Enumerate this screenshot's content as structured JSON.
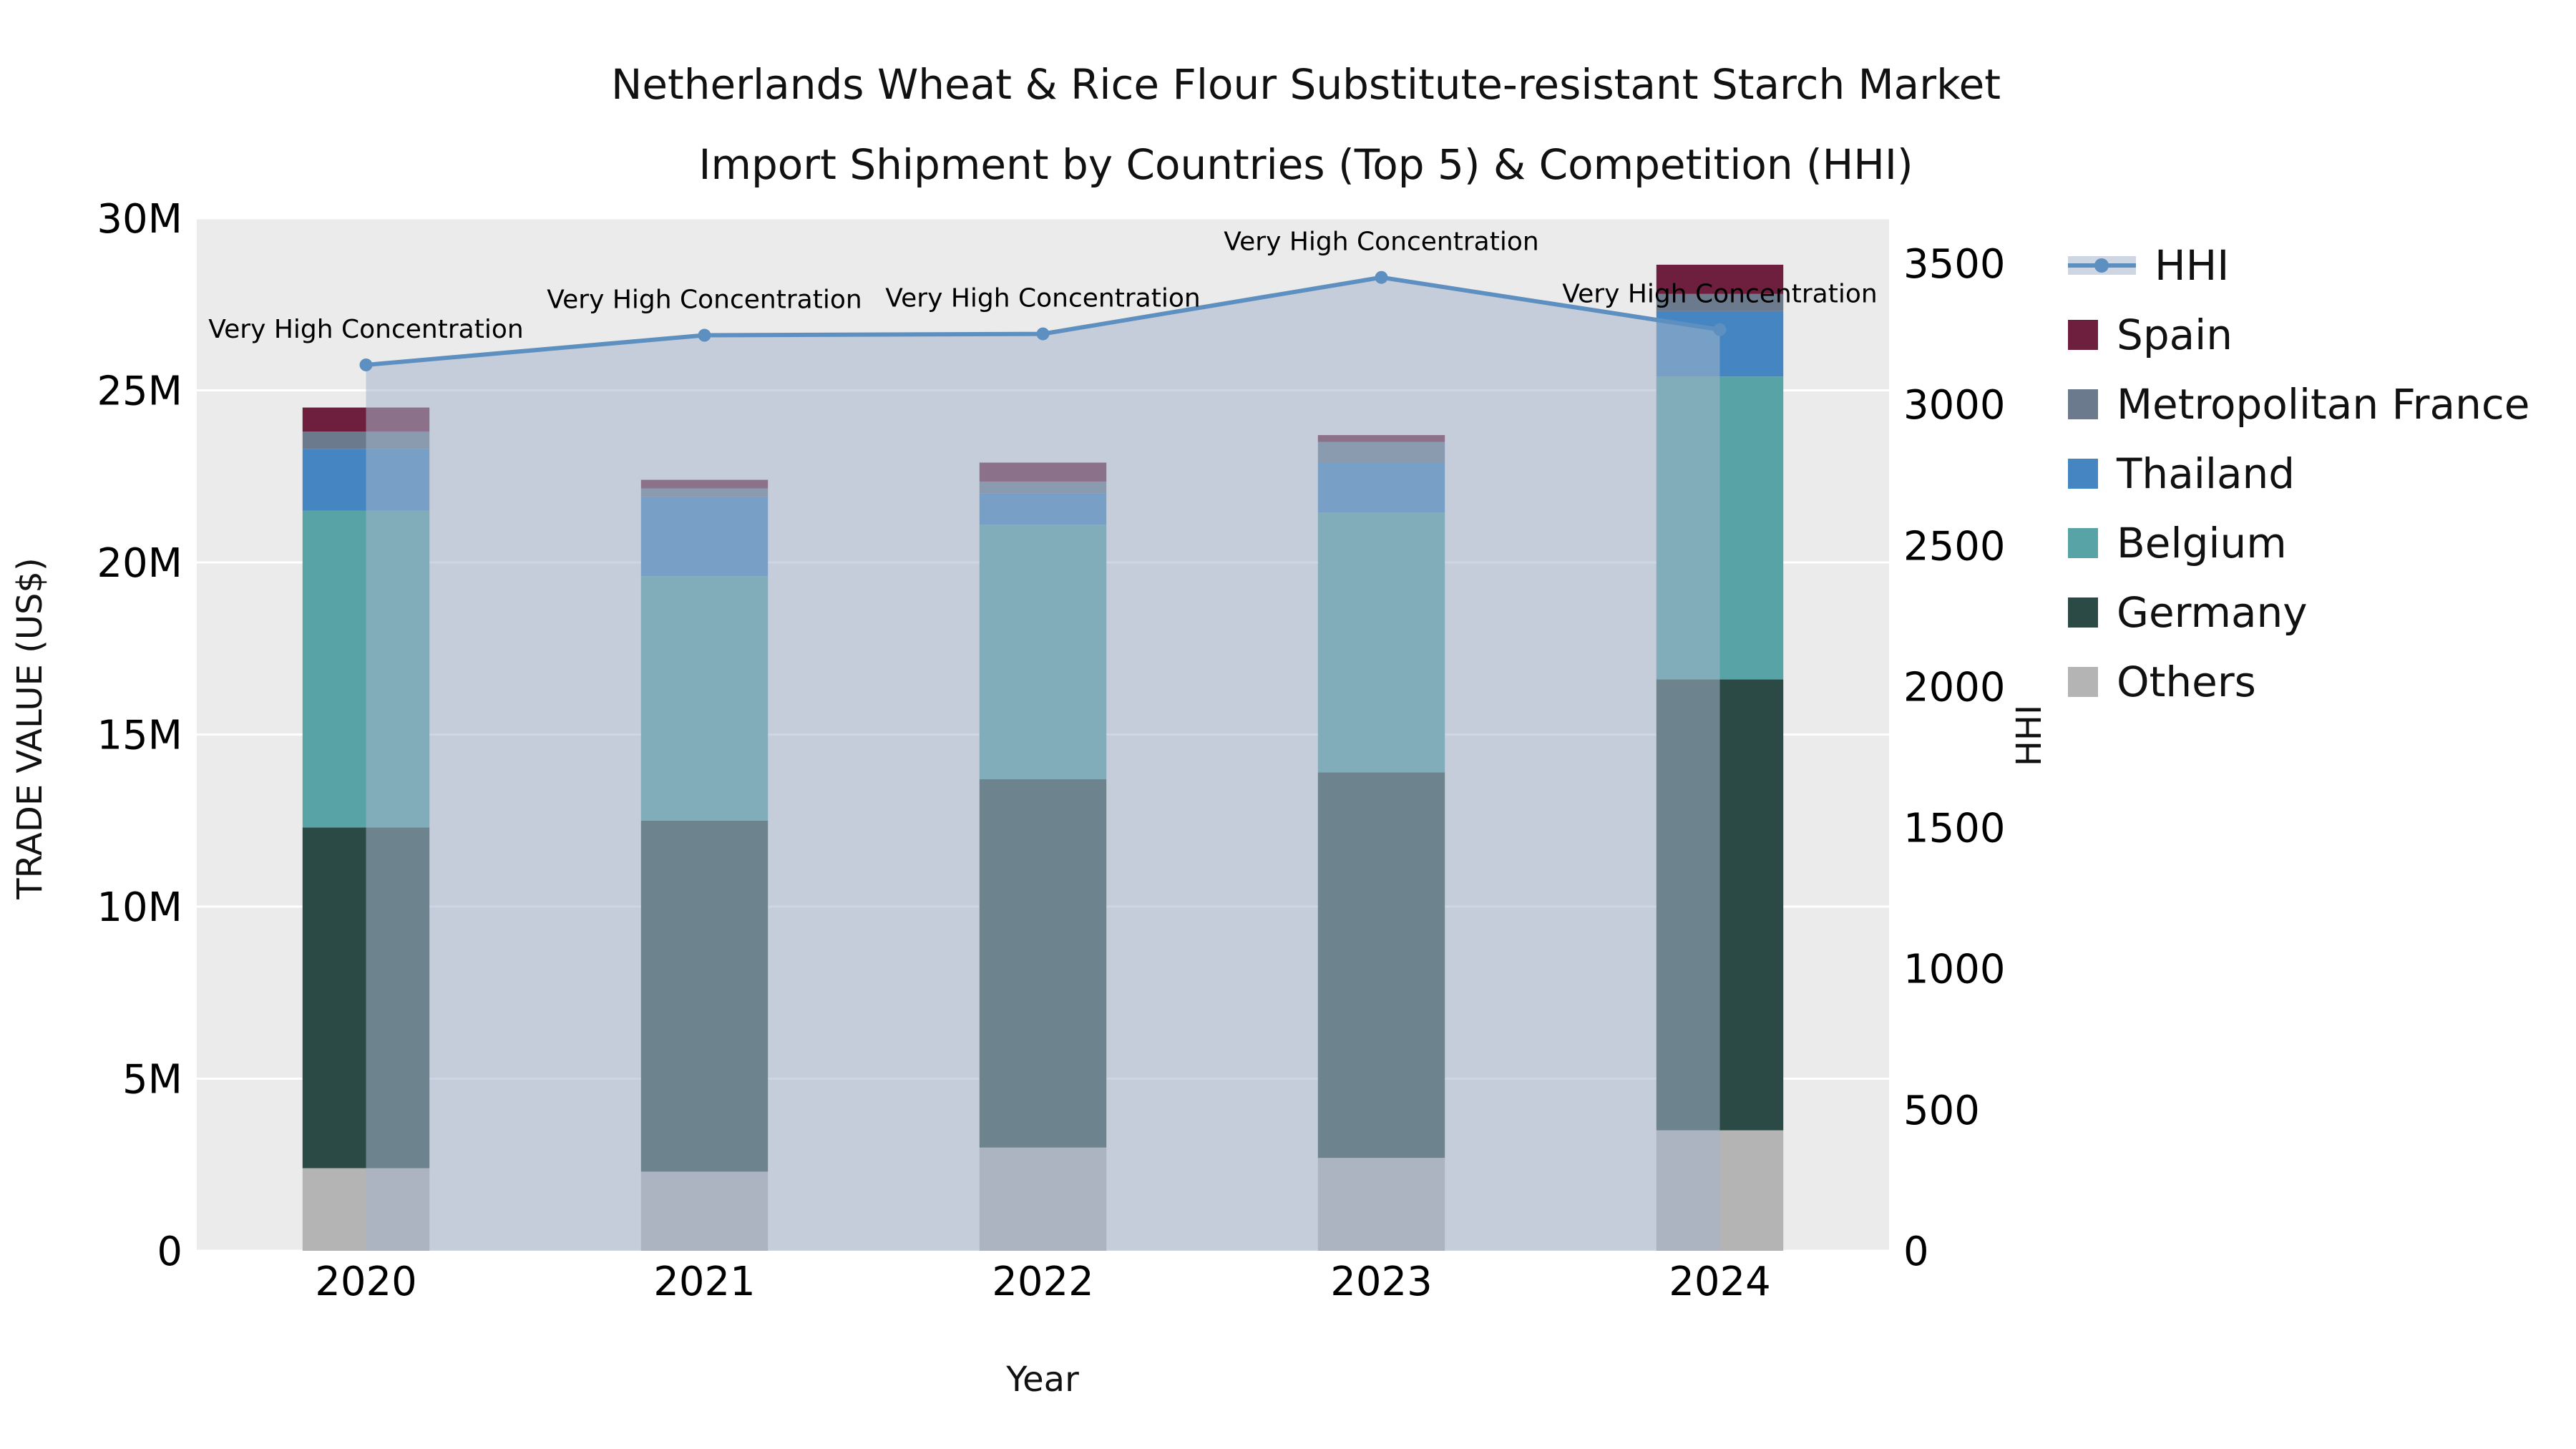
{
  "chart_data": {
    "type": "bar",
    "subtype": "stacked-bars-with-line-area-overlay",
    "title_line1": "Netherlands Wheat & Rice Flour Substitute-resistant Starch Market",
    "title_line2": "Import Shipment by Countries (Top 5) & Competition (HHI)",
    "xlabel": "Year",
    "ylabel_left": "TRADE VALUE (US$)",
    "ylabel_right": "HHI",
    "categories": [
      "2020",
      "2021",
      "2022",
      "2023",
      "2024"
    ],
    "bar_series": [
      {
        "name": "Others",
        "color": "#b4b4b4",
        "values": [
          2400000,
          2300000,
          3000000,
          2700000,
          3500000
        ]
      },
      {
        "name": "Germany",
        "color": "#2b4a46",
        "values": [
          9900000,
          10200000,
          10700000,
          11200000,
          13100000
        ]
      },
      {
        "name": "Belgium",
        "color": "#57a3a6",
        "values": [
          9200000,
          7100000,
          7400000,
          7550000,
          8800000
        ]
      },
      {
        "name": "Thailand",
        "color": "#4485c2",
        "values": [
          1800000,
          2300000,
          900000,
          1450000,
          1900000
        ]
      },
      {
        "name": "Metropolitan France",
        "color": "#6c7a8e",
        "values": [
          500000,
          250000,
          350000,
          600000,
          500000
        ]
      },
      {
        "name": "Spain",
        "color": "#6f1f3e",
        "values": [
          700000,
          250000,
          550000,
          200000,
          850000
        ]
      }
    ],
    "line_series": {
      "name": "HHI",
      "color": "#5d90c0",
      "fill_color": "rgba(164,180,203,0.55)",
      "values": [
        3140,
        3245,
        3250,
        3450,
        3265
      ],
      "annotation": "Very High Concentration"
    },
    "y_left": {
      "min": 0,
      "max": 30000000,
      "tick_values": [
        0,
        5000000,
        10000000,
        15000000,
        20000000,
        25000000,
        30000000
      ],
      "tick_labels": [
        "0",
        "5M",
        "10M",
        "15M",
        "20M",
        "25M",
        "30M"
      ]
    },
    "y_right": {
      "min": 0,
      "max": 3500,
      "tick_values": [
        0,
        500,
        1000,
        1500,
        2000,
        2500,
        3000,
        3500
      ],
      "tick_labels": [
        "0",
        "500",
        "1000",
        "1500",
        "2000",
        "2500",
        "3000",
        "3500"
      ]
    },
    "colors": {
      "plot_bg": "#ebebeb",
      "grid": "#ffffff",
      "text": "#000000"
    },
    "legend_position": "right",
    "legend_order_note": "HHI first, then bar series top-of-stack to bottom"
  }
}
